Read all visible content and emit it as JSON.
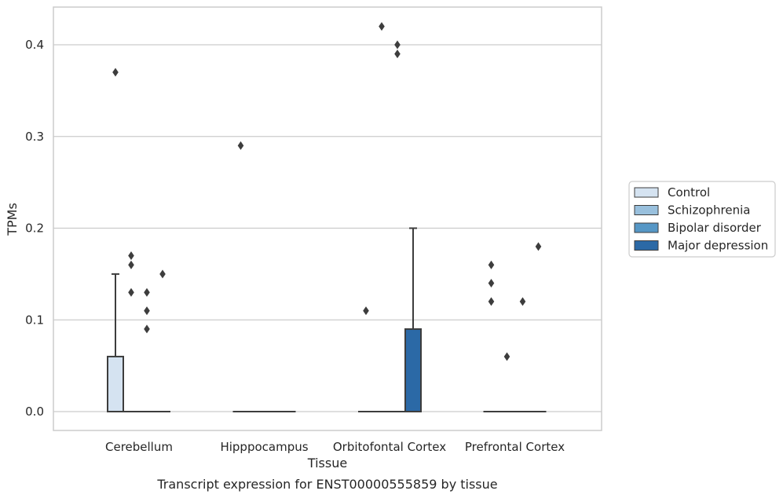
{
  "chart_data": {
    "type": "box",
    "title": "",
    "caption": "Transcript expression for ENST00000555859 by tissue",
    "xlabel": "Tissue",
    "ylabel": "TPMs",
    "ylim": [
      -0.02,
      0.44
    ],
    "yticks": [
      "0.0",
      "0.1",
      "0.2",
      "0.3",
      "0.4"
    ],
    "ytick_values": [
      0.0,
      0.1,
      0.2,
      0.3,
      0.4
    ],
    "grid": "horizontal",
    "legend_position": "right",
    "categories": [
      "Cerebellum",
      "Hipppocampus",
      "Orbitofontal Cortex",
      "Prefrontal Cortex"
    ],
    "series": [
      {
        "name": "Control",
        "color": "#d5e3f1",
        "boxes": [
          {
            "q1": 0.0,
            "median": 0.0,
            "q3": 0.06,
            "whisker_low": 0.0,
            "whisker_high": 0.15,
            "outliers": [
              0.37
            ]
          },
          {
            "q1": 0.0,
            "median": 0.0,
            "q3": 0.0,
            "whisker_low": 0.0,
            "whisker_high": 0.0,
            "outliers": [
              0.29
            ]
          },
          {
            "q1": 0.0,
            "median": 0.0,
            "q3": 0.0,
            "whisker_low": 0.0,
            "whisker_high": 0.0,
            "outliers": [
              0.11
            ]
          },
          {
            "q1": 0.0,
            "median": 0.0,
            "q3": 0.0,
            "whisker_low": 0.0,
            "whisker_high": 0.0,
            "outliers": [
              0.16,
              0.14,
              0.12
            ]
          }
        ]
      },
      {
        "name": "Schizophrenia",
        "color": "#99c0dd",
        "boxes": [
          {
            "q1": 0.0,
            "median": 0.0,
            "q3": 0.0,
            "whisker_low": 0.0,
            "whisker_high": 0.0,
            "outliers": [
              0.17,
              0.16,
              0.13
            ]
          },
          {
            "q1": 0.0,
            "median": 0.0,
            "q3": 0.0,
            "whisker_low": 0.0,
            "whisker_high": 0.0,
            "outliers": []
          },
          {
            "q1": 0.0,
            "median": 0.0,
            "q3": 0.0,
            "whisker_low": 0.0,
            "whisker_high": 0.0,
            "outliers": [
              0.42
            ]
          },
          {
            "q1": 0.0,
            "median": 0.0,
            "q3": 0.0,
            "whisker_low": 0.0,
            "whisker_high": 0.0,
            "outliers": [
              0.06
            ]
          }
        ]
      },
      {
        "name": "Bipolar disorder",
        "color": "#5697c6",
        "boxes": [
          {
            "q1": 0.0,
            "median": 0.0,
            "q3": 0.0,
            "whisker_low": 0.0,
            "whisker_high": 0.0,
            "outliers": [
              0.13,
              0.11,
              0.09
            ]
          },
          {
            "q1": 0.0,
            "median": 0.0,
            "q3": 0.0,
            "whisker_low": 0.0,
            "whisker_high": 0.0,
            "outliers": []
          },
          {
            "q1": 0.0,
            "median": 0.0,
            "q3": 0.0,
            "whisker_low": 0.0,
            "whisker_high": 0.0,
            "outliers": [
              0.4,
              0.39
            ]
          },
          {
            "q1": 0.0,
            "median": 0.0,
            "q3": 0.0,
            "whisker_low": 0.0,
            "whisker_high": 0.0,
            "outliers": [
              0.12
            ]
          }
        ]
      },
      {
        "name": "Major depression",
        "color": "#2b69a6",
        "boxes": [
          {
            "q1": 0.0,
            "median": 0.0,
            "q3": 0.0,
            "whisker_low": 0.0,
            "whisker_high": 0.0,
            "outliers": [
              0.15
            ]
          },
          {
            "q1": 0.0,
            "median": 0.0,
            "q3": 0.0,
            "whisker_low": 0.0,
            "whisker_high": 0.0,
            "outliers": []
          },
          {
            "q1": 0.0,
            "median": 0.0,
            "q3": 0.09,
            "whisker_low": 0.0,
            "whisker_high": 0.2,
            "outliers": []
          },
          {
            "q1": 0.0,
            "median": 0.0,
            "q3": 0.0,
            "whisker_low": 0.0,
            "whisker_high": 0.0,
            "outliers": [
              0.18
            ]
          }
        ]
      }
    ]
  }
}
